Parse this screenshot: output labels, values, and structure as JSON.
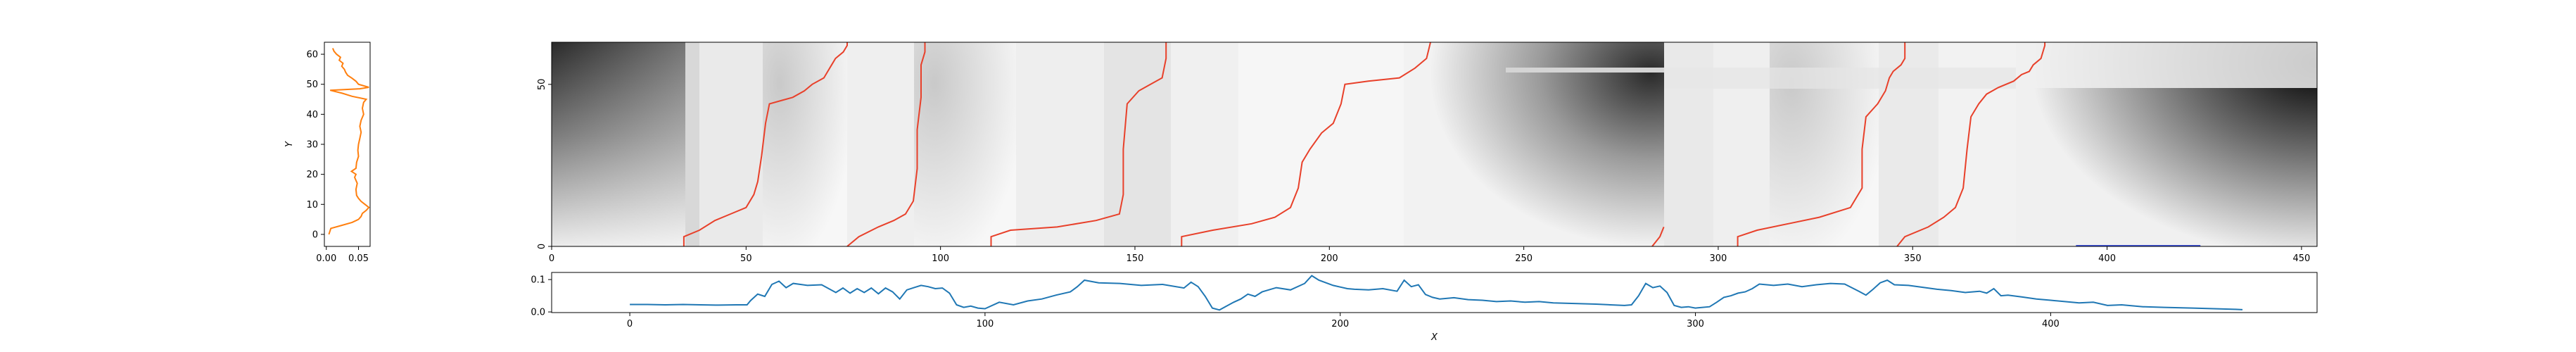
{
  "chart_data": [
    {
      "type": "line",
      "panel": "left-profile",
      "xlabel": "",
      "ylabel": "Y",
      "xlim": [
        -0.003,
        0.068
      ],
      "ylim": [
        -4,
        64
      ],
      "x_ticks": [
        "0.00",
        "0.05"
      ],
      "y_ticks": [
        "0",
        "10",
        "20",
        "30",
        "40",
        "50",
        "60"
      ],
      "color": "#ff7f0e",
      "points": [
        [
          0.004,
          0
        ],
        [
          0.007,
          2
        ],
        [
          0.024,
          3
        ],
        [
          0.04,
          4
        ],
        [
          0.05,
          5
        ],
        [
          0.054,
          6
        ],
        [
          0.056,
          7
        ],
        [
          0.062,
          8
        ],
        [
          0.066,
          9
        ],
        [
          0.06,
          10
        ],
        [
          0.054,
          11
        ],
        [
          0.05,
          12
        ],
        [
          0.047,
          13
        ],
        [
          0.046,
          15
        ],
        [
          0.048,
          17
        ],
        [
          0.044,
          19
        ],
        [
          0.046,
          20
        ],
        [
          0.039,
          21
        ],
        [
          0.046,
          22
        ],
        [
          0.047,
          24
        ],
        [
          0.05,
          26
        ],
        [
          0.049,
          28
        ],
        [
          0.05,
          30
        ],
        [
          0.052,
          32
        ],
        [
          0.054,
          34
        ],
        [
          0.052,
          36
        ],
        [
          0.054,
          38
        ],
        [
          0.058,
          40
        ],
        [
          0.056,
          42
        ],
        [
          0.058,
          44
        ],
        [
          0.062,
          45
        ],
        [
          0.04,
          46
        ],
        [
          0.025,
          47
        ],
        [
          0.006,
          48
        ],
        [
          0.052,
          48.5
        ],
        [
          0.066,
          49
        ],
        [
          0.05,
          50
        ],
        [
          0.046,
          51
        ],
        [
          0.04,
          52
        ],
        [
          0.033,
          53
        ],
        [
          0.03,
          54
        ],
        [
          0.028,
          55
        ],
        [
          0.024,
          56
        ],
        [
          0.026,
          57
        ],
        [
          0.02,
          58
        ],
        [
          0.022,
          59
        ],
        [
          0.016,
          60
        ],
        [
          0.012,
          61
        ],
        [
          0.01,
          62
        ]
      ]
    },
    {
      "type": "heatmap",
      "panel": "cost-matrix",
      "xlim": [
        0,
        454
      ],
      "ylim": [
        0,
        63
      ],
      "x_ticks": [
        "0",
        "50",
        "100",
        "150",
        "200",
        "250",
        "300",
        "350",
        "400",
        "450"
      ],
      "y_ticks": [
        "0",
        "50"
      ],
      "colormap": "gray_r",
      "path_color": "#e8402a",
      "segment_color": "#3b4fd8",
      "segment": {
        "x0": 392,
        "x1": 424,
        "y": 0
      },
      "paths": [
        [
          [
            34,
            0
          ],
          [
            34,
            3
          ],
          [
            38,
            5
          ],
          [
            42,
            8
          ],
          [
            46,
            10
          ],
          [
            50,
            12
          ],
          [
            52,
            16
          ],
          [
            53,
            20
          ],
          [
            54,
            28
          ],
          [
            55,
            38
          ],
          [
            56,
            44
          ],
          [
            59,
            45
          ],
          [
            62,
            46
          ],
          [
            65,
            48
          ],
          [
            67,
            50
          ],
          [
            70,
            52
          ],
          [
            71,
            54
          ],
          [
            72,
            56
          ],
          [
            73,
            58
          ],
          [
            75,
            60
          ],
          [
            76,
            62
          ],
          [
            76,
            63
          ]
        ],
        [
          [
            76,
            0
          ],
          [
            79,
            3
          ],
          [
            84,
            6
          ],
          [
            88,
            8
          ],
          [
            91,
            10
          ],
          [
            93,
            14
          ],
          [
            94,
            24
          ],
          [
            94,
            36
          ],
          [
            95,
            46
          ],
          [
            95,
            56
          ],
          [
            96,
            60
          ],
          [
            96,
            63
          ]
        ],
        [
          [
            113,
            0
          ],
          [
            113,
            3
          ],
          [
            118,
            5
          ],
          [
            130,
            6
          ],
          [
            140,
            8
          ],
          [
            146,
            10
          ],
          [
            147,
            16
          ],
          [
            147,
            30
          ],
          [
            148,
            44
          ],
          [
            151,
            48
          ],
          [
            154,
            50
          ],
          [
            157,
            52
          ],
          [
            158,
            58
          ],
          [
            158,
            63
          ]
        ],
        [
          [
            162,
            0
          ],
          [
            162,
            3
          ],
          [
            170,
            5
          ],
          [
            180,
            7
          ],
          [
            186,
            9
          ],
          [
            190,
            12
          ],
          [
            192,
            18
          ],
          [
            193,
            26
          ],
          [
            195,
            30
          ],
          [
            198,
            35
          ],
          [
            201,
            38
          ],
          [
            203,
            44
          ],
          [
            204,
            50
          ],
          [
            210,
            51
          ],
          [
            218,
            52
          ],
          [
            222,
            55
          ],
          [
            225,
            58
          ],
          [
            226,
            63
          ]
        ],
        [
          [
            283,
            0
          ],
          [
            285,
            3
          ],
          [
            286,
            6
          ]
        ],
        [
          [
            305,
            0
          ],
          [
            305,
            3
          ],
          [
            310,
            5
          ],
          [
            318,
            7
          ],
          [
            326,
            9
          ],
          [
            334,
            12
          ],
          [
            337,
            18
          ],
          [
            337,
            30
          ],
          [
            338,
            40
          ],
          [
            341,
            44
          ],
          [
            343,
            48
          ],
          [
            344,
            52
          ],
          [
            345,
            54
          ],
          [
            347,
            56
          ],
          [
            348,
            58
          ],
          [
            348,
            63
          ]
        ],
        [
          [
            346,
            0
          ],
          [
            348,
            3
          ],
          [
            354,
            6
          ],
          [
            358,
            9
          ],
          [
            361,
            12
          ],
          [
            363,
            18
          ],
          [
            364,
            30
          ],
          [
            365,
            40
          ],
          [
            367,
            44
          ],
          [
            369,
            47
          ],
          [
            372,
            49
          ],
          [
            376,
            51
          ],
          [
            378,
            53
          ],
          [
            380,
            54
          ],
          [
            381,
            56
          ],
          [
            383,
            58
          ],
          [
            384,
            62
          ],
          [
            384,
            63
          ]
        ]
      ]
    },
    {
      "type": "line",
      "panel": "bottom-profile",
      "xlabel": "X",
      "ylabel": "",
      "xlim": [
        -22,
        475
      ],
      "ylim": [
        -0.002,
        0.122
      ],
      "x_ticks": [
        "0",
        "100",
        "200",
        "300",
        "400"
      ],
      "y_ticks": [
        "0.0",
        "0.1"
      ],
      "color": "#1f77b4",
      "points": [
        [
          0,
          0.023
        ],
        [
          5,
          0.023
        ],
        [
          10,
          0.022
        ],
        [
          15,
          0.023
        ],
        [
          20,
          0.022
        ],
        [
          25,
          0.021
        ],
        [
          30,
          0.022
        ],
        [
          33,
          0.022
        ],
        [
          34,
          0.035
        ],
        [
          36,
          0.055
        ],
        [
          38,
          0.048
        ],
        [
          40,
          0.085
        ],
        [
          42,
          0.095
        ],
        [
          44,
          0.075
        ],
        [
          46,
          0.088
        ],
        [
          50,
          0.082
        ],
        [
          54,
          0.084
        ],
        [
          58,
          0.06
        ],
        [
          60,
          0.074
        ],
        [
          62,
          0.058
        ],
        [
          64,
          0.072
        ],
        [
          66,
          0.06
        ],
        [
          68,
          0.074
        ],
        [
          70,
          0.056
        ],
        [
          72,
          0.074
        ],
        [
          74,
          0.062
        ],
        [
          76,
          0.04
        ],
        [
          78,
          0.068
        ],
        [
          80,
          0.075
        ],
        [
          82,
          0.082
        ],
        [
          84,
          0.078
        ],
        [
          86,
          0.072
        ],
        [
          88,
          0.074
        ],
        [
          90,
          0.058
        ],
        [
          92,
          0.022
        ],
        [
          94,
          0.014
        ],
        [
          96,
          0.018
        ],
        [
          98,
          0.012
        ],
        [
          100,
          0.01
        ],
        [
          104,
          0.03
        ],
        [
          108,
          0.022
        ],
        [
          112,
          0.034
        ],
        [
          116,
          0.04
        ],
        [
          120,
          0.052
        ],
        [
          124,
          0.062
        ],
        [
          126,
          0.078
        ],
        [
          128,
          0.098
        ],
        [
          132,
          0.09
        ],
        [
          138,
          0.088
        ],
        [
          144,
          0.082
        ],
        [
          150,
          0.085
        ],
        [
          156,
          0.074
        ],
        [
          158,
          0.092
        ],
        [
          160,
          0.078
        ],
        [
          162,
          0.048
        ],
        [
          164,
          0.012
        ],
        [
          166,
          0.006
        ],
        [
          168,
          0.018
        ],
        [
          170,
          0.03
        ],
        [
          172,
          0.04
        ],
        [
          174,
          0.055
        ],
        [
          176,
          0.048
        ],
        [
          178,
          0.062
        ],
        [
          182,
          0.075
        ],
        [
          186,
          0.068
        ],
        [
          190,
          0.088
        ],
        [
          192,
          0.112
        ],
        [
          194,
          0.098
        ],
        [
          198,
          0.082
        ],
        [
          202,
          0.072
        ],
        [
          204,
          0.07
        ],
        [
          208,
          0.068
        ],
        [
          212,
          0.072
        ],
        [
          216,
          0.064
        ],
        [
          218,
          0.098
        ],
        [
          220,
          0.078
        ],
        [
          222,
          0.084
        ],
        [
          224,
          0.054
        ],
        [
          226,
          0.045
        ],
        [
          228,
          0.04
        ],
        [
          232,
          0.044
        ],
        [
          236,
          0.038
        ],
        [
          240,
          0.036
        ],
        [
          244,
          0.032
        ],
        [
          248,
          0.034
        ],
        [
          252,
          0.03
        ],
        [
          256,
          0.032
        ],
        [
          260,
          0.028
        ],
        [
          266,
          0.026
        ],
        [
          272,
          0.024
        ],
        [
          276,
          0.022
        ],
        [
          280,
          0.02
        ],
        [
          282,
          0.022
        ],
        [
          284,
          0.05
        ],
        [
          286,
          0.088
        ],
        [
          288,
          0.075
        ],
        [
          290,
          0.08
        ],
        [
          292,
          0.06
        ],
        [
          294,
          0.02
        ],
        [
          296,
          0.014
        ],
        [
          298,
          0.016
        ],
        [
          300,
          0.012
        ],
        [
          304,
          0.016
        ],
        [
          306,
          0.03
        ],
        [
          308,
          0.045
        ],
        [
          310,
          0.05
        ],
        [
          312,
          0.058
        ],
        [
          314,
          0.062
        ],
        [
          316,
          0.072
        ],
        [
          318,
          0.086
        ],
        [
          322,
          0.082
        ],
        [
          326,
          0.086
        ],
        [
          330,
          0.078
        ],
        [
          334,
          0.084
        ],
        [
          338,
          0.088
        ],
        [
          342,
          0.086
        ],
        [
          346,
          0.064
        ],
        [
          348,
          0.052
        ],
        [
          350,
          0.07
        ],
        [
          352,
          0.09
        ],
        [
          354,
          0.098
        ],
        [
          356,
          0.084
        ],
        [
          360,
          0.082
        ],
        [
          364,
          0.076
        ],
        [
          368,
          0.07
        ],
        [
          372,
          0.066
        ],
        [
          376,
          0.06
        ],
        [
          380,
          0.064
        ],
        [
          382,
          0.058
        ],
        [
          384,
          0.072
        ],
        [
          386,
          0.05
        ],
        [
          388,
          0.052
        ],
        [
          392,
          0.046
        ],
        [
          396,
          0.04
        ],
        [
          400,
          0.036
        ],
        [
          404,
          0.032
        ],
        [
          408,
          0.028
        ],
        [
          412,
          0.03
        ],
        [
          416,
          0.02
        ],
        [
          420,
          0.022
        ],
        [
          426,
          0.016
        ],
        [
          432,
          0.014
        ],
        [
          440,
          0.012
        ],
        [
          446,
          0.01
        ],
        [
          452,
          0.008
        ],
        [
          454,
          0.007
        ]
      ]
    }
  ]
}
